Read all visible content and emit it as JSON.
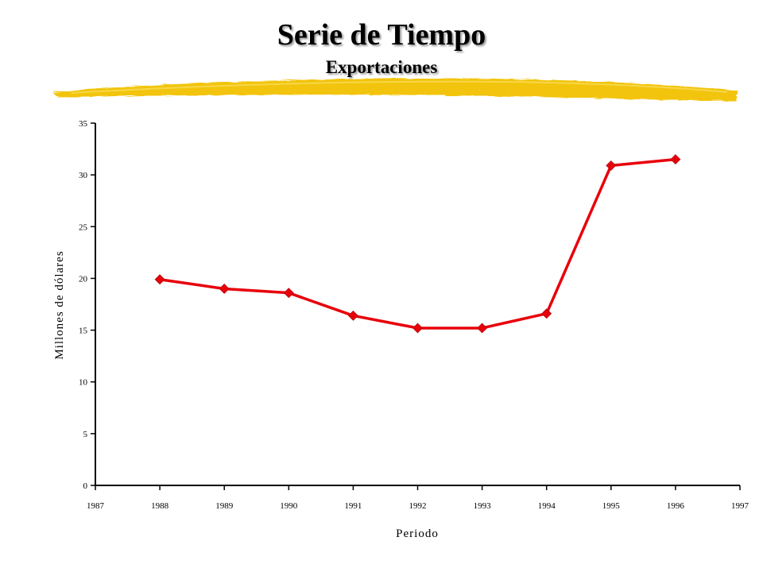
{
  "slide": {
    "title": "Serie de Tiempo",
    "subtitle": "Exportaciones",
    "accent_color": "#f2c40a"
  },
  "chart_data": {
    "type": "line",
    "title": "",
    "xlabel": "Periodo",
    "ylabel": "Millones de dólares",
    "x": [
      1988,
      1989,
      1990,
      1991,
      1992,
      1993,
      1994,
      1995,
      1996
    ],
    "series": [
      {
        "values": [
          19.9,
          19.0,
          18.6,
          16.4,
          15.2,
          15.2,
          16.6,
          30.9,
          31.5
        ],
        "color": "#e8000b",
        "marker": "diamond"
      }
    ],
    "xlim": [
      1987,
      1997
    ],
    "ylim": [
      0,
      35
    ],
    "x_ticks": [
      "1987",
      "1988",
      "1989",
      "1990",
      "1991",
      "1992",
      "1993",
      "1994",
      "1995",
      "1996",
      "1997"
    ],
    "y_ticks": [
      "0",
      "5",
      "10",
      "15",
      "20",
      "25",
      "30",
      "35"
    ],
    "grid": false,
    "legend": "none"
  }
}
